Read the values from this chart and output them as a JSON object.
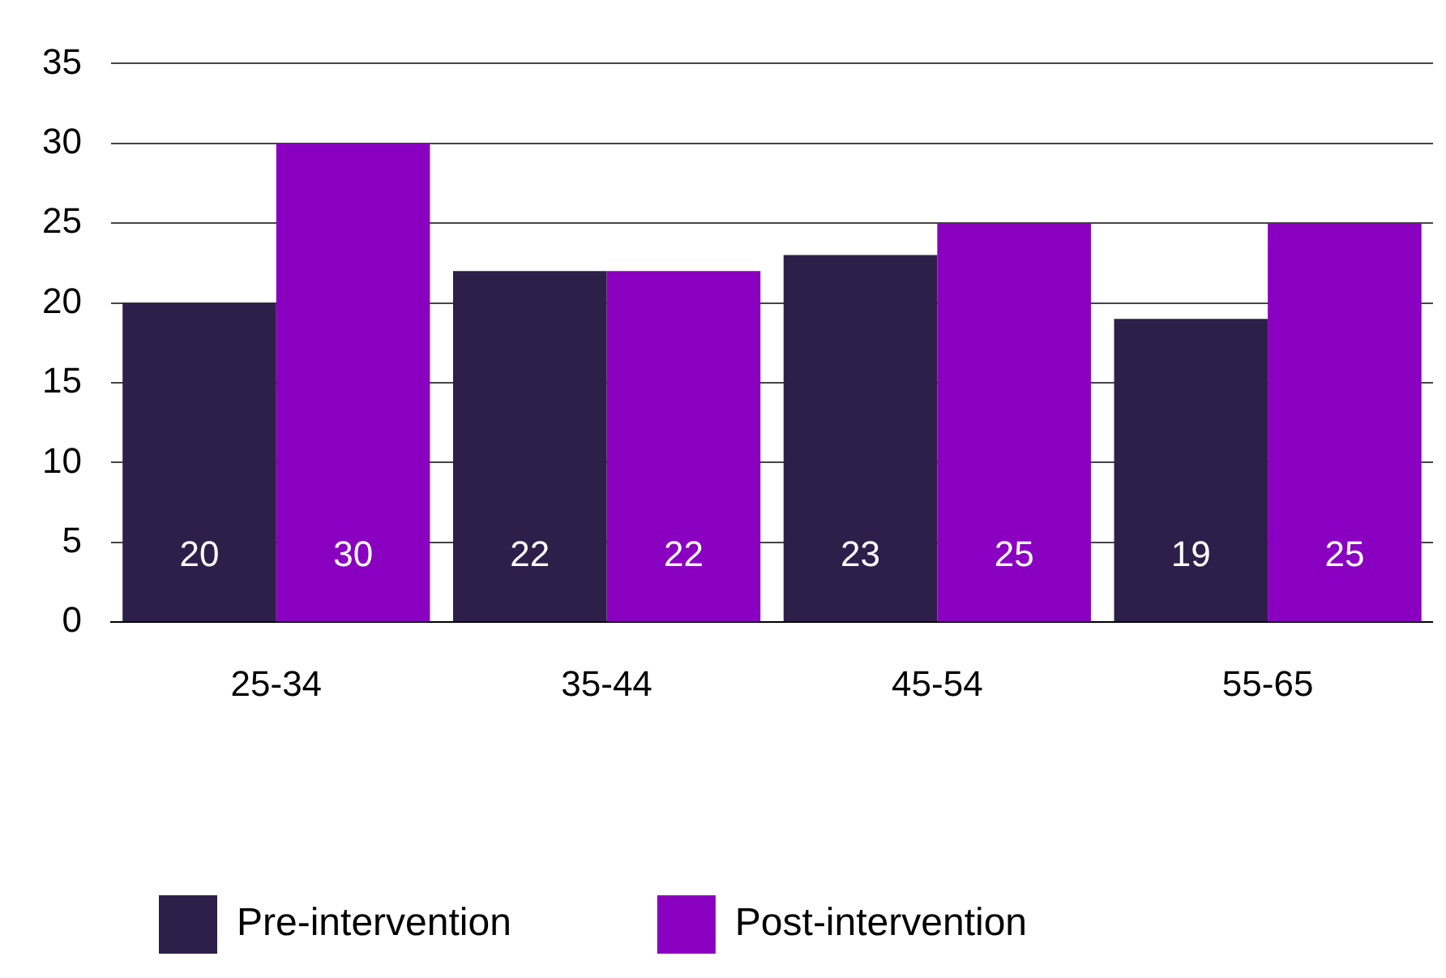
{
  "chart_data": {
    "type": "bar",
    "categories": [
      "25-34",
      "35-44",
      "45-54",
      "55-65"
    ],
    "series": [
      {
        "name": "Pre-intervention",
        "color": "#2e1f4a",
        "values": [
          20,
          22,
          23,
          19
        ]
      },
      {
        "name": "Post-intervention",
        "color": "#8a00c0",
        "values": [
          30,
          22,
          25,
          25
        ]
      }
    ],
    "ylim": [
      0,
      35
    ],
    "yticks": [
      0,
      5,
      10,
      15,
      20,
      25,
      30,
      35
    ],
    "grid": "y",
    "legend": "bottom",
    "data_labels": true
  }
}
